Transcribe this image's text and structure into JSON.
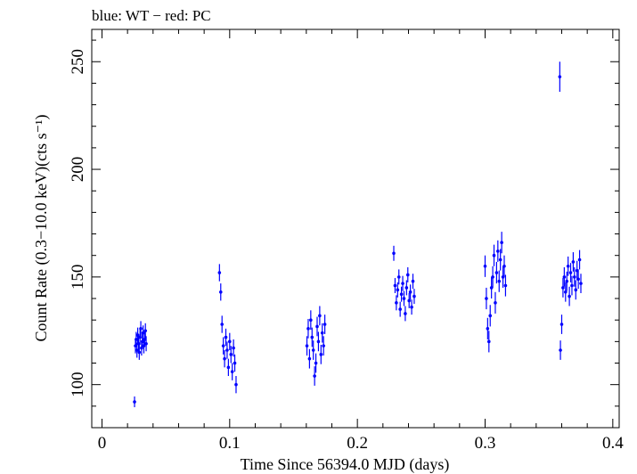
{
  "chart_data": {
    "type": "scatter",
    "title": "blue: WT − red: PC",
    "xlabel": "Time Since 56394.0 MJD (days)",
    "ylabel": "Count Rate (0.3−10.0 keV)(cts s⁻¹)",
    "xlim": [
      -0.008,
      0.405
    ],
    "ylim": [
      80,
      265
    ],
    "xticks": [
      0,
      0.1,
      0.2,
      0.3,
      0.4
    ],
    "xtick_labels": [
      "0",
      "0.1",
      "0.2",
      "0.3",
      "0.4"
    ],
    "yticks": [
      100,
      150,
      200,
      250
    ],
    "ytick_labels": [
      "100",
      "150",
      "200",
      "250"
    ],
    "grid": false,
    "colors": {
      "WT": "#0000ff"
    },
    "series": [
      {
        "name": "WT",
        "clusters": [
          {
            "x": [
              0.0255,
              0.0262,
              0.0268,
              0.0274,
              0.028,
              0.0286,
              0.0292,
              0.0298,
              0.0304,
              0.031,
              0.0316,
              0.0322,
              0.0328,
              0.0334,
              0.034,
              0.0346
            ],
            "y": [
              92,
              118,
              121,
              116,
              123,
              119,
              115,
              122,
              126,
              117,
              120,
              124,
              118,
              121,
              125,
              119
            ],
            "err": [
              2.5,
              3.5,
              3.5,
              3.5,
              3.5,
              3.5,
              3.5,
              3.5,
              3.5,
              3.5,
              3.5,
              3.5,
              3.5,
              3.5,
              3.5,
              3.5
            ]
          },
          {
            "x": [
              0.092,
              0.093,
              0.094,
              0.095,
              0.096,
              0.097,
              0.098,
              0.099,
              0.1,
              0.101,
              0.102,
              0.103,
              0.104,
              0.105
            ],
            "y": [
              152,
              143,
              128,
              118,
              112,
              122,
              116,
              108,
              120,
              114,
              106,
              117,
              110,
              100
            ],
            "err": [
              4,
              4,
              4,
              4,
              4,
              4,
              4,
              4,
              4,
              4,
              4,
              4,
              4,
              4
            ]
          },
          {
            "x": [
              0.1605,
              0.1615,
              0.1625,
              0.1635,
              0.1645,
              0.1655,
              0.1665,
              0.1675,
              0.1685,
              0.1695,
              0.1705,
              0.1715,
              0.1725,
              0.1735,
              0.1745
            ],
            "y": [
              118,
              126,
              112,
              130,
              122,
              116,
              104,
              110,
              127,
              120,
              132,
              114,
              124,
              118,
              128
            ],
            "err": [
              4.5,
              4.5,
              4.5,
              4.5,
              4.5,
              4.5,
              4.5,
              4.5,
              4.5,
              4.5,
              4.5,
              4.5,
              4.5,
              4.5,
              4.5
            ]
          },
          {
            "x": [
              0.2285,
              0.2295,
              0.2305,
              0.2315,
              0.2325,
              0.2335,
              0.2345,
              0.2355,
              0.2365,
              0.2375,
              0.2385,
              0.2395,
              0.2405,
              0.2415,
              0.2425,
              0.2435,
              0.2445
            ],
            "y": [
              161,
              146,
              138,
              144,
              150,
              135,
              142,
              147,
              140,
              133,
              145,
              151,
              139,
              143,
              136,
              148,
              141
            ],
            "err": [
              3.5,
              3.5,
              3.5,
              3.5,
              3.5,
              3.5,
              3.5,
              3.5,
              3.5,
              3.5,
              3.5,
              3.5,
              3.5,
              3.5,
              3.5,
              3.5,
              3.5
            ]
          },
          {
            "x": [
              0.3,
              0.301,
              0.302,
              0.303,
              0.304,
              0.305,
              0.306,
              0.307,
              0.308,
              0.309,
              0.31,
              0.311,
              0.312,
              0.313,
              0.314,
              0.315,
              0.316
            ],
            "y": [
              155,
              140,
              126,
              120,
              132,
              145,
              150,
              160,
              138,
              152,
              162,
              148,
              158,
              166,
              150,
              155,
              146
            ],
            "err": [
              5,
              5,
              5,
              5,
              5,
              5,
              5,
              5,
              5,
              5,
              5,
              5,
              5,
              5,
              5,
              5,
              5
            ]
          },
          {
            "x": [
              0.3585
            ],
            "y": [
              243
            ],
            "err": [
              7
            ]
          },
          {
            "x": [
              0.359,
              0.36,
              0.361,
              0.362,
              0.363,
              0.364,
              0.365,
              0.366,
              0.367,
              0.368,
              0.369,
              0.37,
              0.371,
              0.372,
              0.373,
              0.374,
              0.375
            ],
            "y": [
              116,
              128,
              145,
              150,
              143,
              148,
              155,
              141,
              152,
              146,
              157,
              150,
              144,
              153,
              149,
              158,
              147
            ],
            "err": [
              4.5,
              4.5,
              4.5,
              4.5,
              4.5,
              4.5,
              4.5,
              4.5,
              4.5,
              4.5,
              4.5,
              4.5,
              4.5,
              4.5,
              4.5,
              4.5,
              4.5
            ]
          }
        ]
      }
    ]
  }
}
